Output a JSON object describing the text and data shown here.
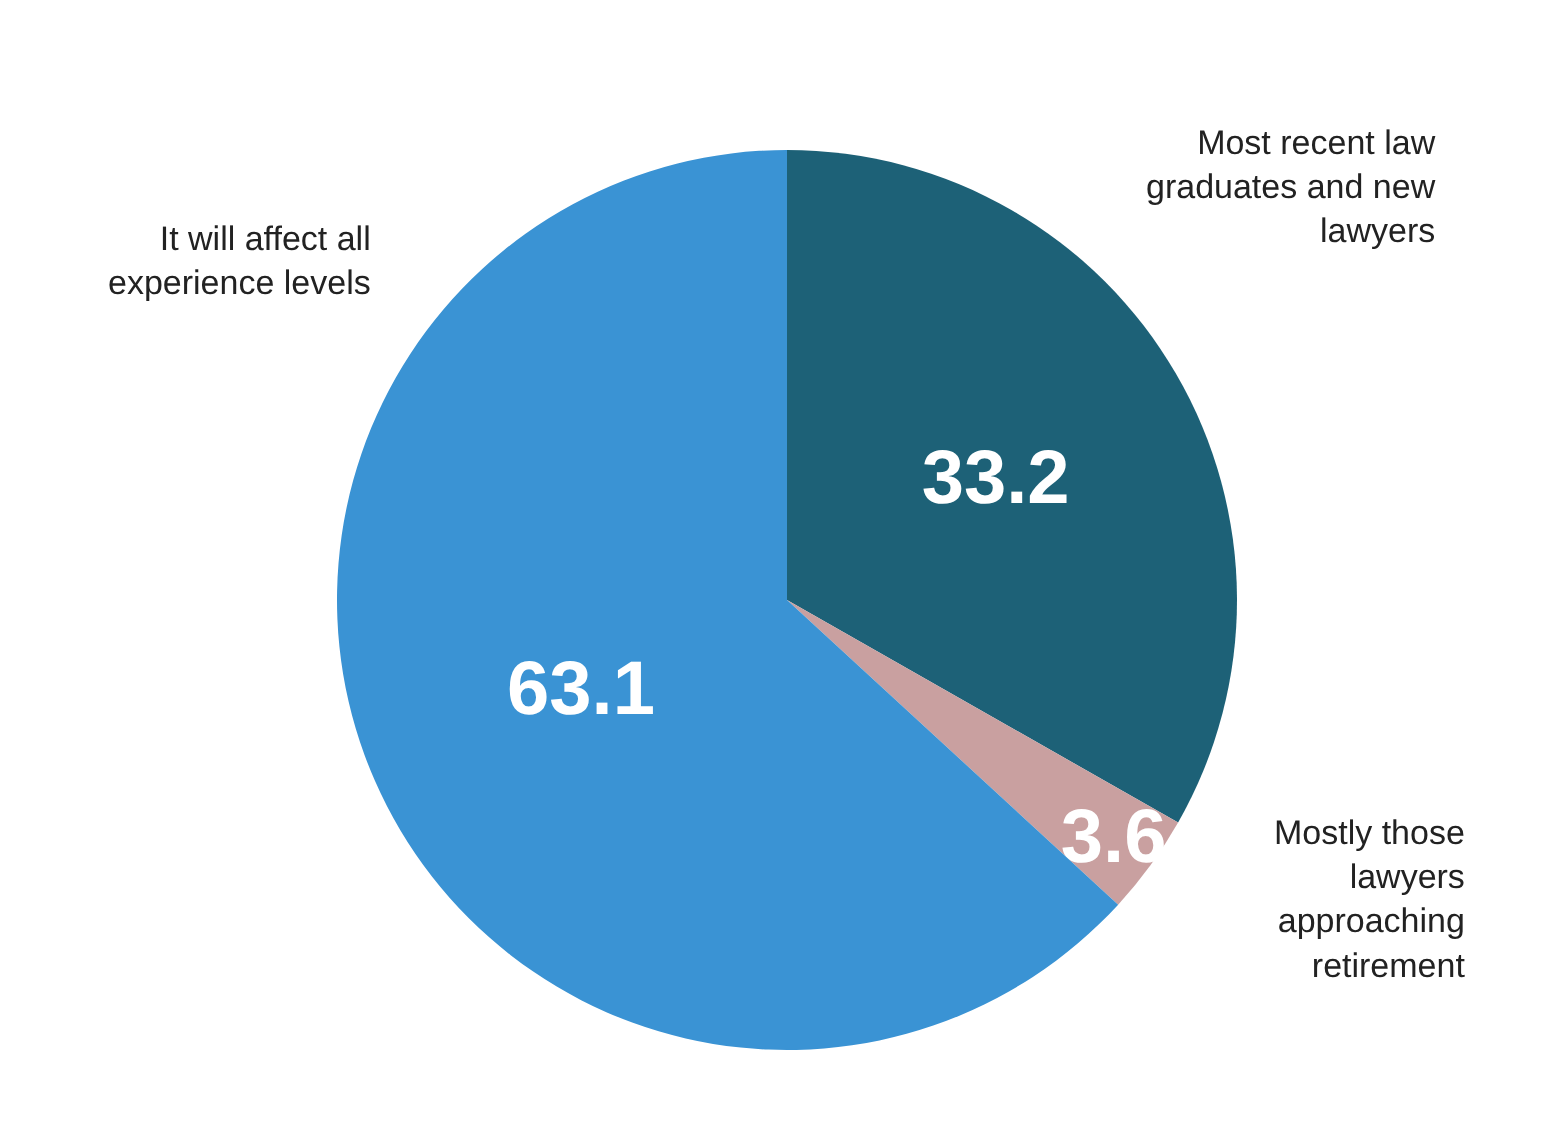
{
  "chart_data": {
    "type": "pie",
    "categories": [
      "Most recent law graduates and new lawyers",
      "Mostly those lawyers approaching retirement",
      "It will affect all experience levels"
    ],
    "values": [
      33.2,
      3.6,
      63.1
    ],
    "colors": [
      "#1d6177",
      "#c9a0a0",
      "#3a93d4"
    ],
    "data_labels": true,
    "legend": false
  }
}
